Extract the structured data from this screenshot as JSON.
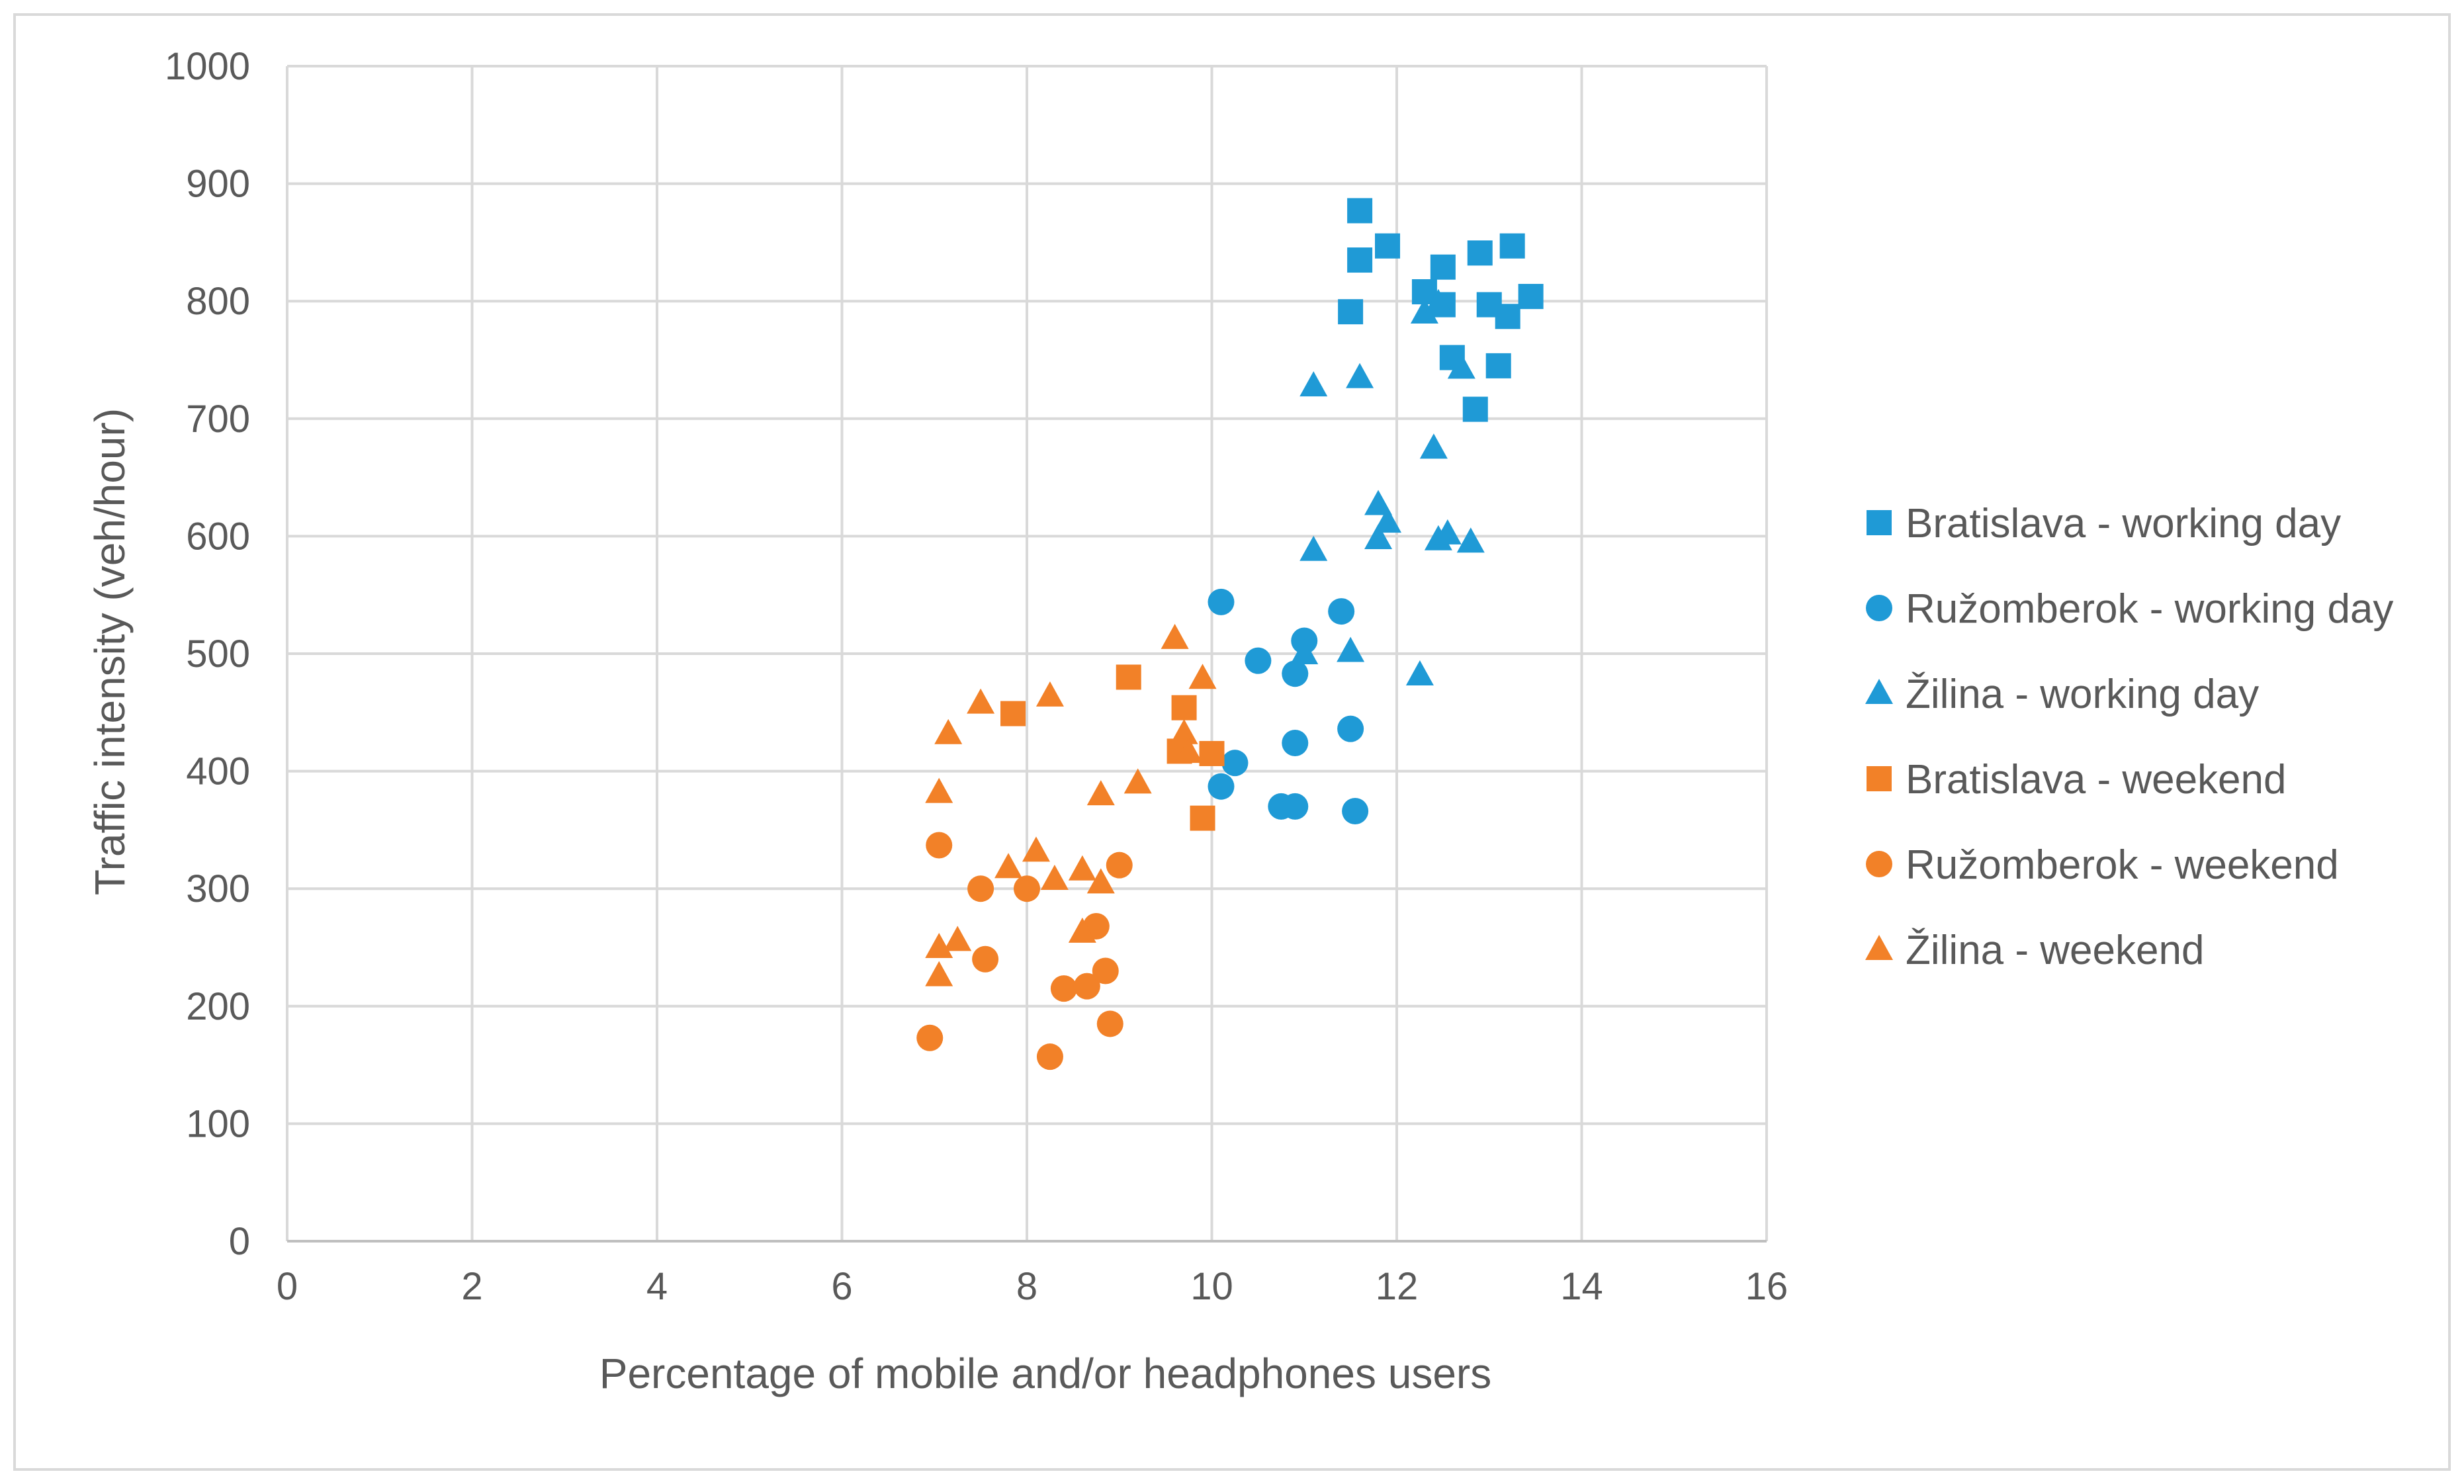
{
  "chart_data": {
    "type": "scatter",
    "title": "",
    "xlabel": "Percentage of mobile and/or headphones users",
    "ylabel": "Traffic intensity (veh/hour)",
    "xlim": [
      0,
      16
    ],
    "ylim": [
      0,
      1000
    ],
    "x_ticks": [
      0,
      2,
      4,
      6,
      8,
      10,
      12,
      14,
      16
    ],
    "y_ticks": [
      0,
      100,
      200,
      300,
      400,
      500,
      600,
      700,
      800,
      900,
      1000
    ],
    "x_tick_labels": [
      "0",
      "2",
      "4",
      "6",
      "8",
      "10",
      "12",
      "14",
      "16"
    ],
    "y_tick_labels": [
      "0",
      "100",
      "200",
      "300",
      "400",
      "500",
      "600",
      "700",
      "800",
      "900",
      "1000"
    ],
    "grid": "major, both axes",
    "legend_position": "right",
    "series": [
      {
        "name": "Bratislava - working day",
        "marker": "square",
        "color": "#1f9ad6",
        "points": [
          [
            11.6,
            877
          ],
          [
            11.6,
            835
          ],
          [
            11.9,
            847
          ],
          [
            11.5,
            791
          ],
          [
            12.3,
            808
          ],
          [
            12.5,
            829
          ],
          [
            12.9,
            841
          ],
          [
            13.25,
            847
          ],
          [
            12.5,
            797
          ],
          [
            13.0,
            797
          ],
          [
            13.2,
            787
          ],
          [
            13.45,
            804
          ],
          [
            12.6,
            752
          ],
          [
            13.1,
            745
          ],
          [
            12.85,
            708
          ]
        ]
      },
      {
        "name": "Ružomberok - working day",
        "marker": "circle",
        "color": "#1f9ad6",
        "points": [
          [
            10.1,
            544
          ],
          [
            10.5,
            494
          ],
          [
            11.0,
            511
          ],
          [
            10.9,
            483
          ],
          [
            11.4,
            536
          ],
          [
            10.9,
            424
          ],
          [
            11.5,
            436
          ],
          [
            10.25,
            407
          ],
          [
            10.1,
            387
          ],
          [
            10.75,
            370
          ],
          [
            10.9,
            370
          ],
          [
            11.55,
            366
          ]
        ]
      },
      {
        "name": "Žilina - working day",
        "marker": "triangle",
        "color": "#1f9ad6",
        "points": [
          [
            12.3,
            790
          ],
          [
            12.45,
            798
          ],
          [
            12.7,
            743
          ],
          [
            11.1,
            728
          ],
          [
            11.6,
            735
          ],
          [
            12.4,
            675
          ],
          [
            11.8,
            627
          ],
          [
            11.9,
            612
          ],
          [
            11.8,
            598
          ],
          [
            12.45,
            597
          ],
          [
            12.55,
            602
          ],
          [
            12.8,
            595
          ],
          [
            11.1,
            588
          ],
          [
            11.0,
            500
          ],
          [
            11.5,
            502
          ],
          [
            12.25,
            482
          ]
        ]
      },
      {
        "name": "Bratislava - weekend",
        "marker": "square",
        "color": "#f28128",
        "points": [
          [
            9.1,
            480
          ],
          [
            7.85,
            449
          ],
          [
            9.7,
            454
          ],
          [
            9.65,
            417
          ],
          [
            10.0,
            415
          ],
          [
            9.9,
            360
          ]
        ]
      },
      {
        "name": "Ružomberok - weekend",
        "marker": "circle",
        "color": "#f28128",
        "points": [
          [
            7.05,
            337
          ],
          [
            7.5,
            300
          ],
          [
            8.0,
            300
          ],
          [
            9.0,
            320
          ],
          [
            7.55,
            240
          ],
          [
            8.75,
            268
          ],
          [
            8.4,
            215
          ],
          [
            8.65,
            217
          ],
          [
            8.85,
            230
          ],
          [
            8.9,
            185
          ],
          [
            6.95,
            173
          ],
          [
            8.25,
            157
          ]
        ]
      },
      {
        "name": "Žilina - weekend",
        "marker": "triangle",
        "color": "#f28128",
        "points": [
          [
            9.6,
            513
          ],
          [
            9.9,
            479
          ],
          [
            7.5,
            458
          ],
          [
            8.25,
            464
          ],
          [
            7.15,
            432
          ],
          [
            9.7,
            432
          ],
          [
            9.75,
            416
          ],
          [
            7.05,
            382
          ],
          [
            8.8,
            380
          ],
          [
            9.2,
            390
          ],
          [
            7.8,
            318
          ],
          [
            8.1,
            332
          ],
          [
            8.3,
            308
          ],
          [
            8.6,
            316
          ],
          [
            8.8,
            305
          ],
          [
            7.05,
            250
          ],
          [
            7.25,
            256
          ],
          [
            7.05,
            226
          ],
          [
            8.6,
            263
          ]
        ]
      }
    ]
  }
}
